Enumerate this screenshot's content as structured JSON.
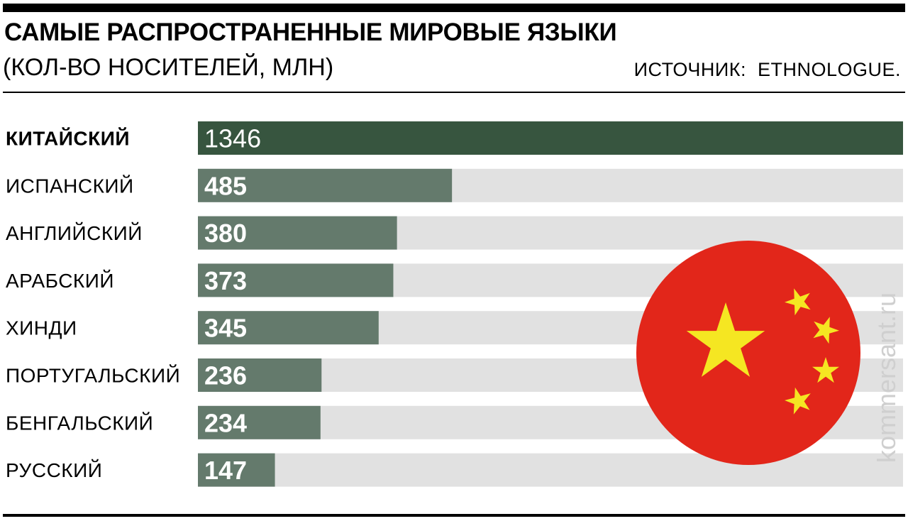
{
  "chart_data": {
    "type": "bar",
    "orientation": "horizontal",
    "title": "САМЫЕ РАСПРОСТРАНЕННЫЕ МИРОВЫЕ ЯЗЫКИ",
    "subtitle": "(КОЛ-ВО НОСИТЕЛЕЙ, МЛН)",
    "source": "ИСТОЧНИК:  ETHNOLOGUE.",
    "categories": [
      "КИТАЙСКИЙ",
      "ИСПАНСКИЙ",
      "АНГЛИЙСКИЙ",
      "АРАБСКИЙ",
      "ХИНДИ",
      "ПОРТУГАЛЬСКИЙ",
      "БЕНГАЛЬСКИЙ",
      "РУССКИЙ"
    ],
    "values": [
      1346,
      485,
      380,
      373,
      345,
      236,
      234,
      147
    ],
    "xlim": [
      0,
      1346
    ],
    "grid": false,
    "colors": {
      "highlight": "#37553f",
      "bar": "#647a6c",
      "track": "#e1e1e1",
      "flag_red": "#e2261a",
      "flag_star": "#f5e622"
    }
  },
  "watermark": "kommersant.ru"
}
